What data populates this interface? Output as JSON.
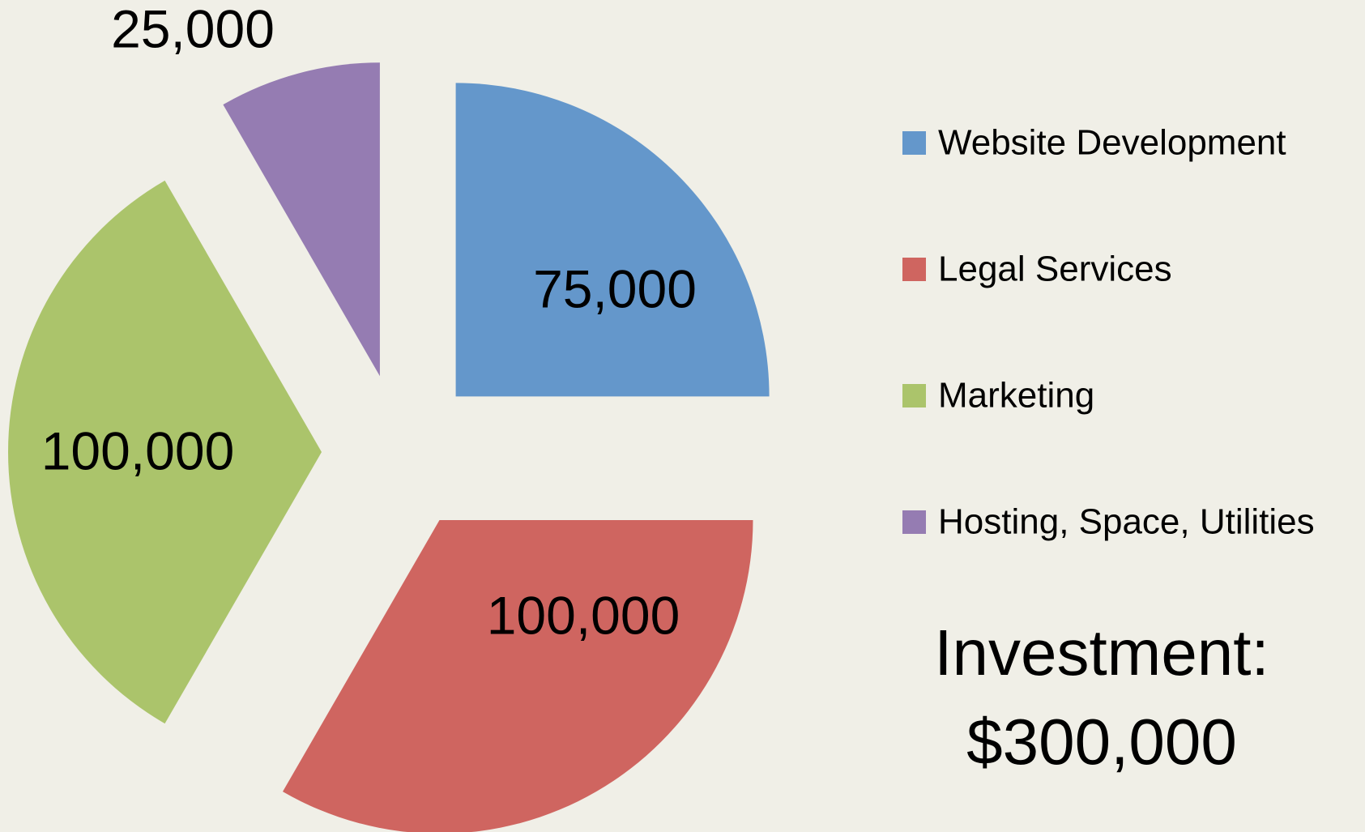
{
  "chart_data": {
    "type": "pie",
    "categories": [
      "Website Development",
      "Legal Services",
      "Marketing",
      "Hosting, Space, Utilities"
    ],
    "values": [
      75000,
      100000,
      100000,
      25000
    ],
    "value_labels": [
      "75,000",
      "100,000",
      "100,000",
      "25,000"
    ],
    "colors": [
      "#6497cb",
      "#cf6560",
      "#abc46b",
      "#957cb2"
    ],
    "legend": "right",
    "annotations": [
      "Investment:",
      "$300,000"
    ]
  }
}
